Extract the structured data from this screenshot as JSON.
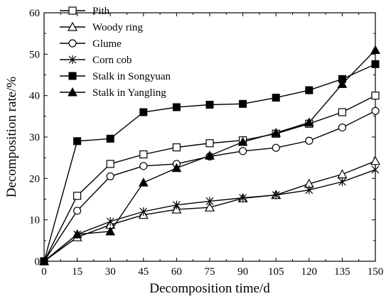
{
  "chart_data": {
    "type": "line",
    "title": "",
    "xlabel": "Decomposition time/d",
    "ylabel": "Decomposition rate/%",
    "x": [
      0,
      15,
      30,
      45,
      60,
      75,
      90,
      105,
      120,
      135,
      150
    ],
    "xlim": [
      0,
      150
    ],
    "ylim": [
      0,
      60
    ],
    "xticks": [
      0,
      15,
      30,
      45,
      60,
      75,
      90,
      105,
      120,
      135,
      150
    ],
    "yticks": [
      0,
      10,
      20,
      30,
      40,
      50,
      60
    ],
    "grid": false,
    "legend_position": "top-left",
    "series": [
      {
        "name": "Pith",
        "marker": "open-square",
        "values": [
          0,
          15.8,
          23.5,
          25.8,
          27.5,
          28.5,
          29.2,
          30.8,
          33.2,
          36.0,
          40.0
        ]
      },
      {
        "name": "Woody ring",
        "marker": "open-triangle",
        "values": [
          0,
          5.8,
          8.8,
          11.2,
          12.5,
          13.0,
          15.2,
          16.0,
          18.7,
          21.0,
          24.2
        ]
      },
      {
        "name": "Glume",
        "marker": "open-circle",
        "values": [
          0,
          12.2,
          20.5,
          23.0,
          23.5,
          25.3,
          26.6,
          27.4,
          29.1,
          32.3,
          36.3
        ]
      },
      {
        "name": "Corn cob",
        "marker": "asterisk",
        "values": [
          0,
          6.5,
          9.6,
          12.0,
          13.6,
          14.5,
          15.3,
          16.0,
          17.2,
          19.2,
          22.1
        ]
      },
      {
        "name": "Stalk in Songyuan",
        "marker": "filled-square",
        "values": [
          0,
          29.0,
          29.6,
          36.0,
          37.2,
          37.8,
          38.0,
          39.5,
          41.3,
          44.0,
          47.6
        ]
      },
      {
        "name": "Stalk in Yangling",
        "marker": "filled-triangle",
        "values": [
          0,
          6.5,
          7.2,
          19.0,
          22.5,
          25.5,
          28.8,
          31.0,
          33.5,
          42.8,
          51.0
        ]
      }
    ]
  }
}
